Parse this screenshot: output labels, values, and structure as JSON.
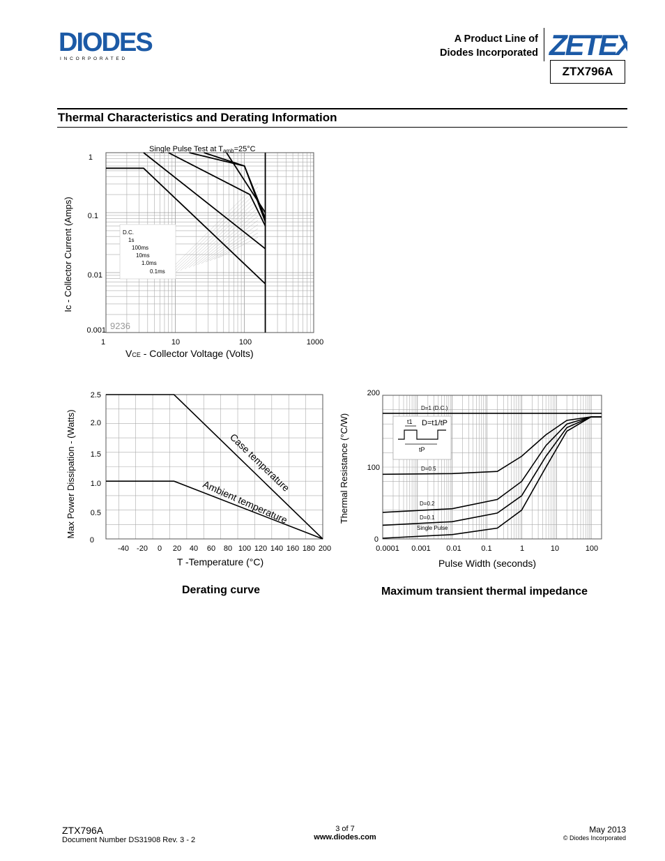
{
  "header": {
    "company_logo_text": "DIODES",
    "company_logo_subtext": "I N C O R P O R A T E D",
    "product_line_1": "A Product Line of",
    "product_line_2": "Diodes Incorporated",
    "brand_logo_text": "ZETEX",
    "part_number": "ZTX796A"
  },
  "section_title": "Thermal Characteristics and Derating Information",
  "soa_chart": {
    "title_prefix": "Single Pulse Test at T",
    "title_sub": "amb",
    "title_suffix": "=25°C",
    "ylabel": "Ic - Collector Current (Amps)",
    "xlabel_prefix": "V",
    "xlabel_sub": "CE",
    "xlabel_suffix": " - Collector Voltage (Volts)",
    "y_ticks": [
      "1",
      "0.1",
      "0.01",
      "0.001"
    ],
    "x_ticks": [
      "1",
      "10",
      "100",
      "1000"
    ],
    "legend": [
      "D.C.",
      "1s",
      "100ms",
      "10ms",
      "1.0ms",
      "0.1ms"
    ],
    "watermark": "9236"
  },
  "derating_chart": {
    "ylabel": "Max Power Dissipation - (Watts)",
    "xlabel": "T -Temperature (°C)",
    "y_ticks": [
      "2.5",
      "2.0",
      "1.5",
      "1.0",
      "0.5",
      "0"
    ],
    "x_ticks": [
      "-40",
      "-20",
      "0",
      "20",
      "40",
      "60",
      "80",
      "100",
      "120",
      "140",
      "160",
      "180",
      "200"
    ],
    "curve_labels": [
      "Case temperature",
      "Ambient temperature"
    ],
    "caption": "Derating curve"
  },
  "thermal_chart": {
    "ylabel": "Thermal Resistance (°C/W)",
    "xlabel": "Pulse Width (seconds)",
    "y_ticks": [
      "200",
      "100",
      "0"
    ],
    "x_ticks": [
      "0.0001",
      "0.001",
      "0.01",
      "0.1",
      "1",
      "10",
      "100"
    ],
    "curve_labels": [
      "D=1 (D.C.)",
      "D=0.5",
      "D=0.2",
      "D=0.1",
      "Single Pulse"
    ],
    "inset_t1": "t1",
    "inset_formula": "D=t1/tP",
    "inset_tp": "tP",
    "caption": "Maximum transient thermal impedance"
  },
  "chart_data": [
    {
      "type": "line",
      "title": "Single Pulse Test at Tamb=25°C",
      "xlabel": "VCE - Collector Voltage (Volts)",
      "ylabel": "Ic - Collector Current (Amps)",
      "x_scale": "log",
      "y_scale": "log",
      "xlim": [
        1,
        1000
      ],
      "ylim": [
        0.001,
        1
      ],
      "series": [
        {
          "name": "D.C.",
          "x": [
            1,
            3.5,
            200
          ],
          "y": [
            0.55,
            0.55,
            0.0065
          ]
        },
        {
          "name": "1s",
          "x": [
            3.5,
            200
          ],
          "y": [
            1,
            0.025
          ]
        },
        {
          "name": "100ms",
          "x": [
            8,
            120,
            200
          ],
          "y": [
            1,
            0.2,
            0.06
          ]
        },
        {
          "name": "10ms",
          "x": [
            16,
            100,
            200
          ],
          "y": [
            1,
            0.6,
            0.07
          ]
        },
        {
          "name": "1.0ms",
          "x": [
            26,
            100,
            200
          ],
          "y": [
            1,
            0.6,
            0.08
          ]
        },
        {
          "name": "0.1ms",
          "x": [
            55,
            200
          ],
          "y": [
            1,
            0.1
          ]
        }
      ],
      "grid": true
    },
    {
      "type": "line",
      "title": "Derating curve",
      "xlabel": "T -Temperature (°C)",
      "ylabel": "Max Power Dissipation - (Watts)",
      "xlim": [
        -55,
        200
      ],
      "ylim": [
        0,
        2.5
      ],
      "series": [
        {
          "name": "Case temperature",
          "x": [
            -55,
            25,
            200
          ],
          "y": [
            2.5,
            2.5,
            0
          ]
        },
        {
          "name": "Ambient temperature",
          "x": [
            -55,
            25,
            200
          ],
          "y": [
            1.0,
            1.0,
            0
          ]
        }
      ],
      "grid": true
    },
    {
      "type": "line",
      "title": "Maximum transient thermal impedance",
      "xlabel": "Pulse Width (seconds)",
      "ylabel": "Thermal Resistance (°C/W)",
      "x_scale": "log",
      "xlim": [
        0.0001,
        200
      ],
      "ylim": [
        0,
        200
      ],
      "series": [
        {
          "name": "D=1 (D.C.)",
          "x": [
            0.0001,
            200
          ],
          "y": [
            175,
            175
          ]
        },
        {
          "name": "D=0.5",
          "x": [
            0.0001,
            0.01,
            0.2,
            1,
            5,
            20,
            100,
            200
          ],
          "y": [
            90,
            91,
            94,
            115,
            145,
            165,
            170,
            170
          ]
        },
        {
          "name": "D=0.2",
          "x": [
            0.0001,
            0.01,
            0.2,
            1,
            5,
            20,
            100,
            200
          ],
          "y": [
            37,
            42,
            55,
            80,
            130,
            160,
            170,
            170
          ]
        },
        {
          "name": "D=0.1",
          "x": [
            0.0001,
            0.01,
            0.2,
            1,
            5,
            20,
            100,
            200
          ],
          "y": [
            19,
            24,
            36,
            60,
            115,
            155,
            170,
            170
          ]
        },
        {
          "name": "Single Pulse",
          "x": [
            0.0001,
            0.01,
            0.2,
            1,
            5,
            20,
            100,
            200
          ],
          "y": [
            1,
            6,
            15,
            40,
            100,
            150,
            170,
            170
          ]
        }
      ],
      "grid": true
    }
  ],
  "footer": {
    "part": "ZTX796A",
    "doc_number": "Document Number DS31908 Rev. 3 - 2",
    "page": "3 of 7",
    "website": "www.diodes.com",
    "date": "May 2013",
    "copyright": "© Diodes Incorporated"
  }
}
